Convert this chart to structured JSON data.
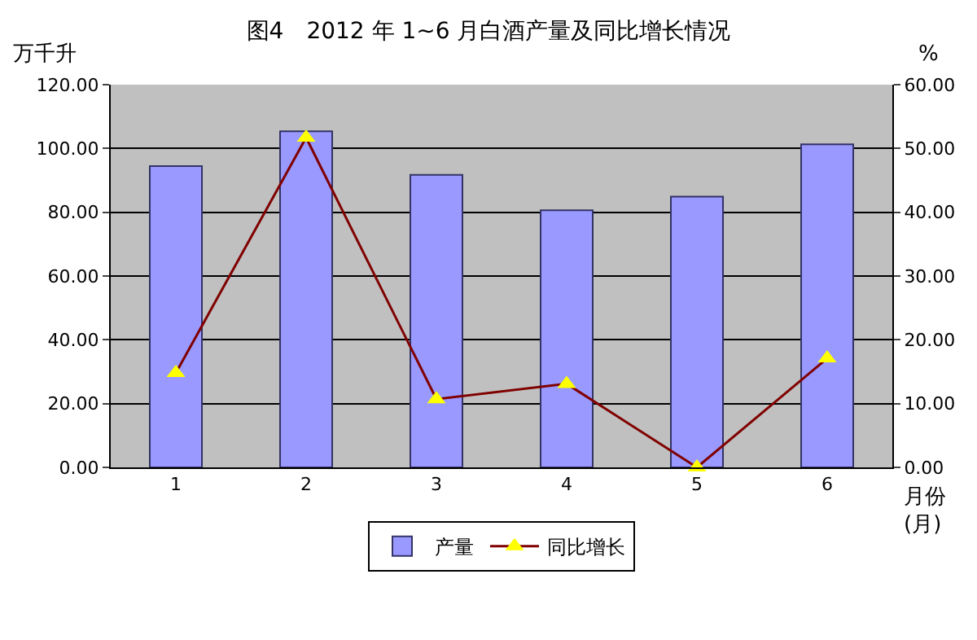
{
  "chart_data": {
    "type": "bar",
    "title": "图4　2012 年 1~6 月白酒产量及同比增长情况",
    "xlabel": "月份\n(月)",
    "ylabel": "万千升",
    "y2label": "%",
    "categories": [
      "1",
      "2",
      "3",
      "4",
      "5",
      "6"
    ],
    "series": [
      {
        "name": "产量",
        "color": "#9999ff",
        "values": [
          94.5,
          105.4,
          91.7,
          80.6,
          84.9,
          101.3
        ]
      },
      {
        "name": "同比增长",
        "type": "line",
        "axis": "y2",
        "color": "#800000",
        "marker": "triangle",
        "values": [
          14.8,
          51.7,
          10.7,
          13.1,
          0.0,
          17.1
        ]
      }
    ],
    "ylim": [
      0,
      120
    ],
    "yticks": [
      {
        "value": 0,
        "label": "0.00"
      },
      {
        "value": 20,
        "label": "20.00"
      },
      {
        "value": 40,
        "label": "40.00"
      },
      {
        "value": 60,
        "label": "60.00"
      },
      {
        "value": 80,
        "label": "80.00"
      },
      {
        "value": 100,
        "label": "100.00"
      },
      {
        "value": 120,
        "label": "120.00"
      }
    ],
    "y2lim": [
      0,
      60
    ],
    "y2ticks": [
      {
        "value": 0,
        "label": "0.00"
      },
      {
        "value": 10,
        "label": "10.00"
      },
      {
        "value": 20,
        "label": "20.00"
      },
      {
        "value": 30,
        "label": "30.00"
      },
      {
        "value": 40,
        "label": "40.00"
      },
      {
        "value": 50,
        "label": "50.00"
      },
      {
        "value": 60,
        "label": "60.00"
      }
    ],
    "grid": "y",
    "legend": "bottom"
  }
}
